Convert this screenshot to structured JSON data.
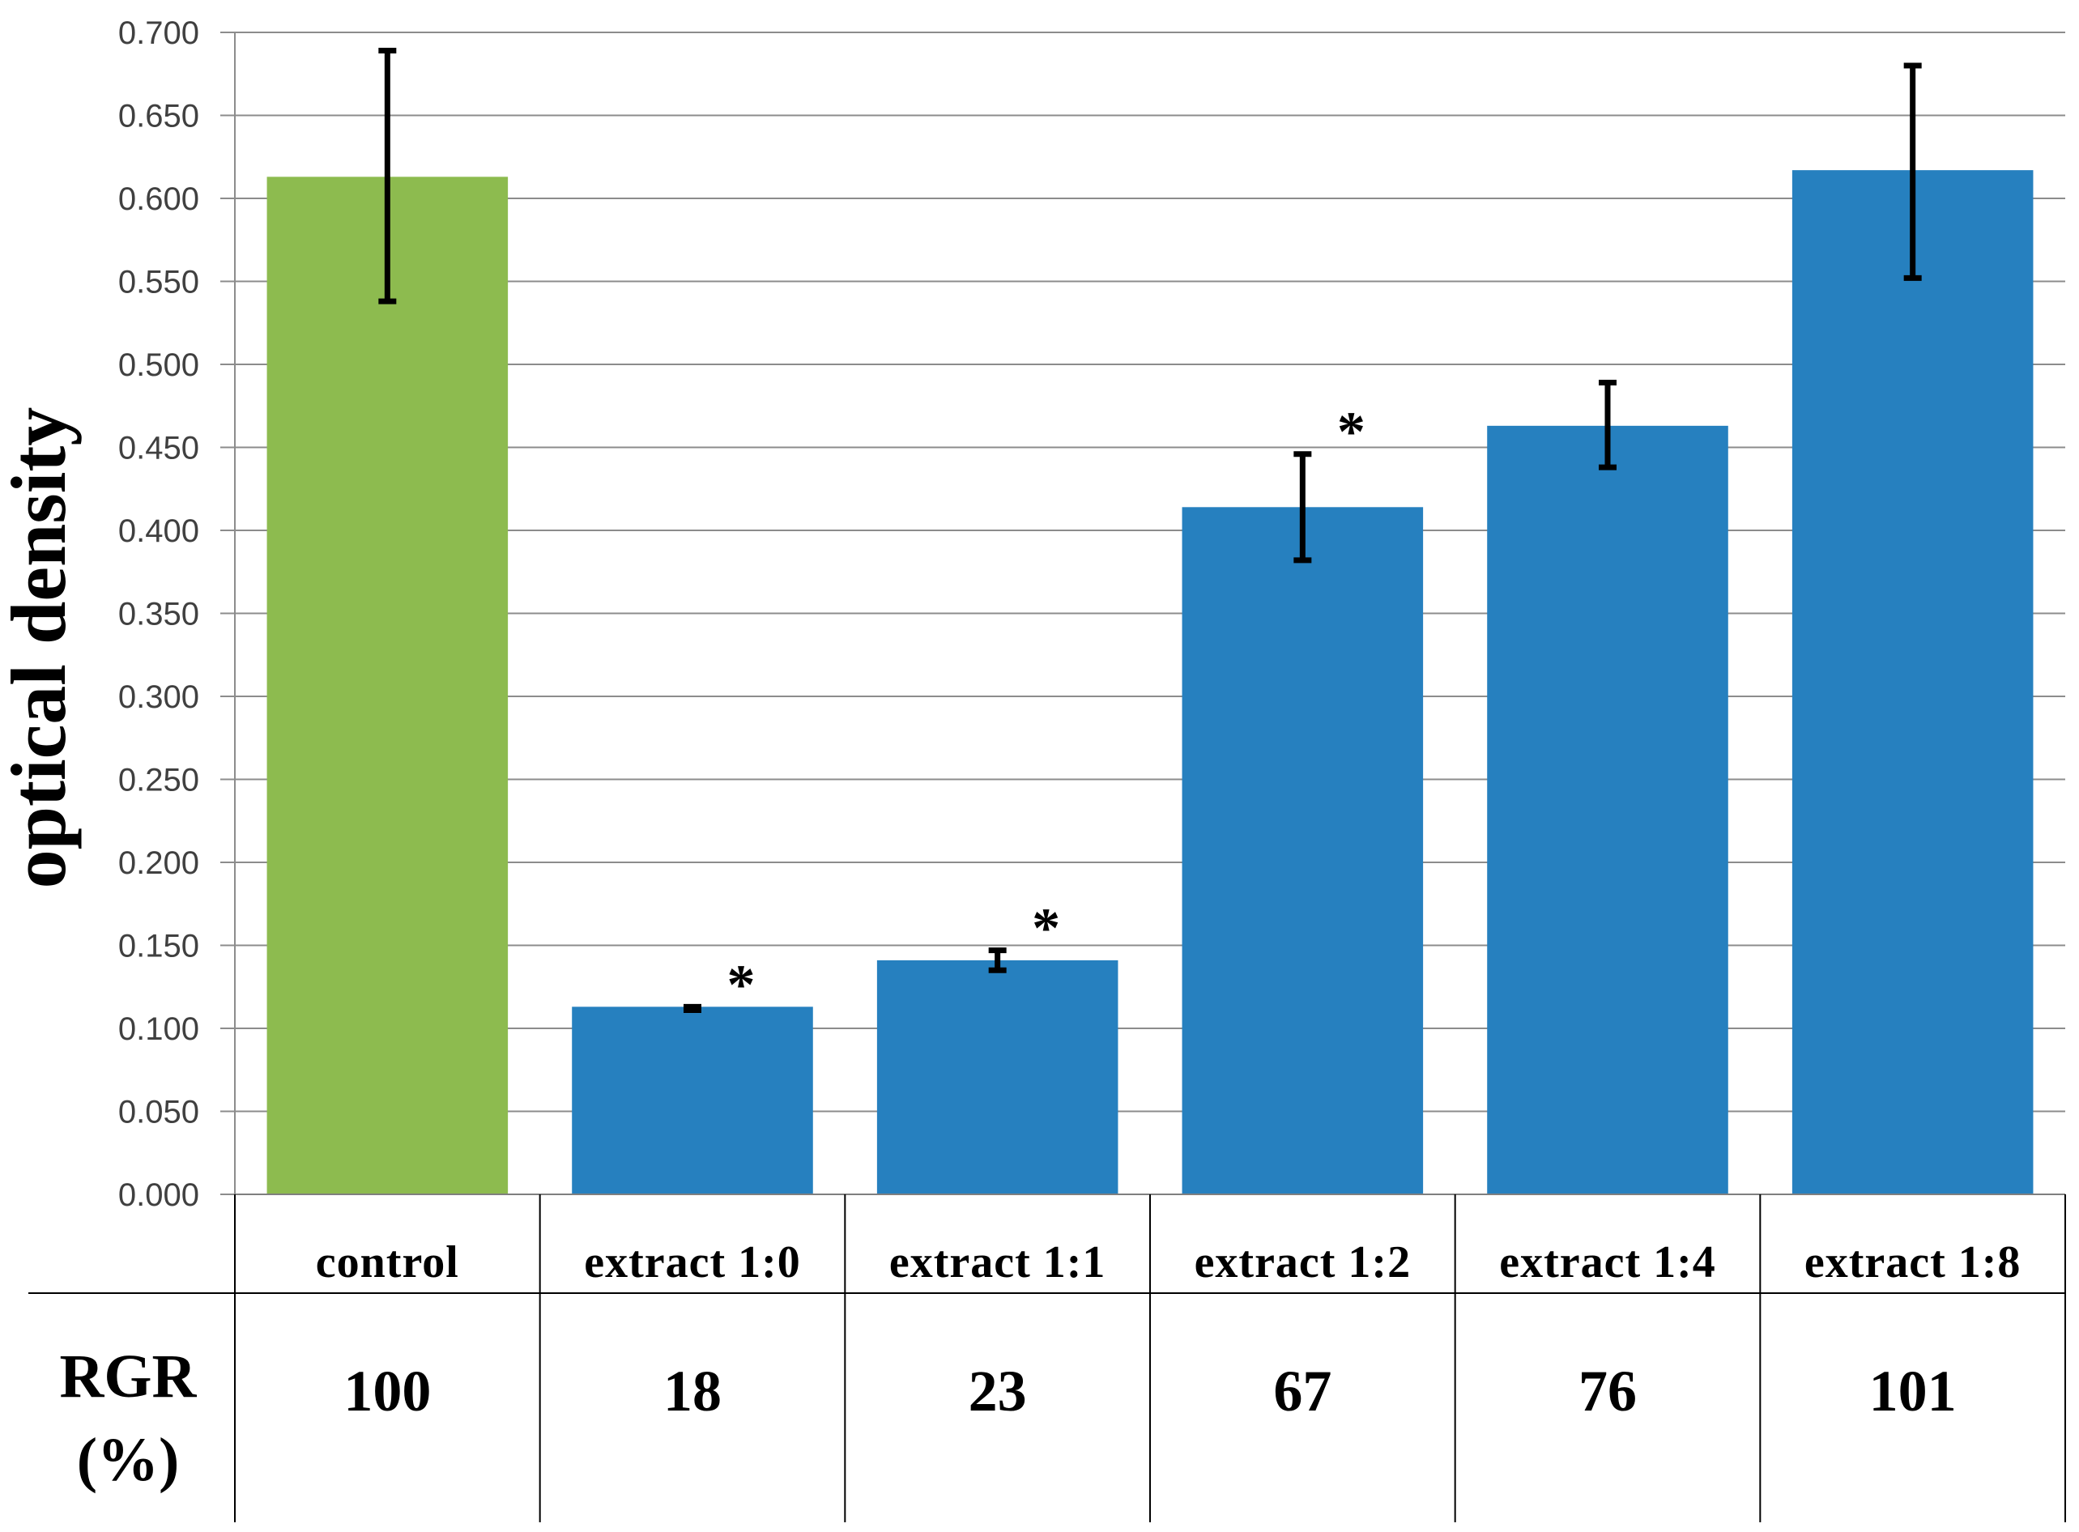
{
  "chart_data": {
    "type": "bar",
    "ylabel": "optical density",
    "ylim": [
      0,
      0.7
    ],
    "ytick_step": 0.05,
    "ytick_decimals": 3,
    "grid": true,
    "categories": [
      "control",
      "extract 1:0",
      "extract 1:1",
      "extract 1:2",
      "extract 1:4",
      "extract 1:8"
    ],
    "values": [
      0.613,
      0.113,
      0.141,
      0.414,
      0.463,
      0.617
    ],
    "error_low": [
      0.538,
      0.111,
      0.135,
      0.382,
      0.438,
      0.552
    ],
    "error_high": [
      0.689,
      0.113,
      0.147,
      0.446,
      0.489,
      0.68
    ],
    "significance": [
      "",
      "*",
      "*",
      "*",
      "",
      ""
    ],
    "colors": [
      "#8DBB4F",
      "#2680BF",
      "#2680BF",
      "#2680BF",
      "#2680BF",
      "#2680BF"
    ],
    "table": {
      "row_header_line1": "RGR",
      "row_header_line2": "(%)",
      "values": [
        "100",
        "18",
        "23",
        "67",
        "76",
        "101"
      ]
    }
  }
}
